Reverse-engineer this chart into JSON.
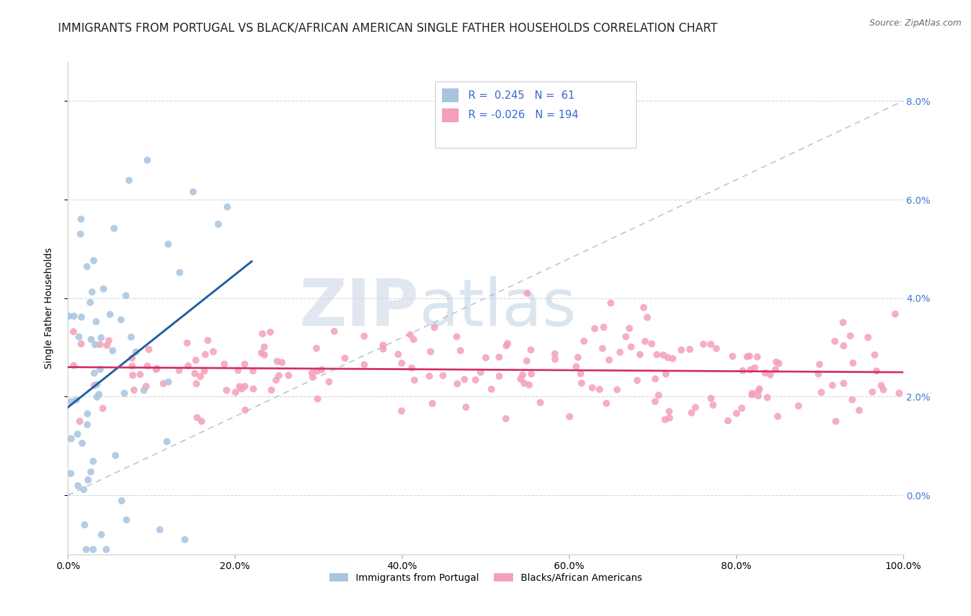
{
  "title": "IMMIGRANTS FROM PORTUGAL VS BLACK/AFRICAN AMERICAN SINGLE FATHER HOUSEHOLDS CORRELATION CHART",
  "source": "Source: ZipAtlas.com",
  "ylabel": "Single Father Households",
  "xlim": [
    0.0,
    100.0
  ],
  "ylim": [
    -1.2,
    8.8
  ],
  "yticks": [
    0.0,
    2.0,
    4.0,
    6.0,
    8.0
  ],
  "xticks": [
    0.0,
    20.0,
    40.0,
    60.0,
    80.0,
    100.0
  ],
  "series1_label": "Immigrants from Portugal",
  "series2_label": "Blacks/African Americans",
  "series1_color": "#a8c4e0",
  "series2_color": "#f4a0b8",
  "series1_R": 0.245,
  "series1_N": 61,
  "series2_R": -0.026,
  "series2_N": 194,
  "trend1_color": "#2060a0",
  "trend2_color": "#d03060",
  "ref_line_color": "#a0b8d0",
  "watermark_zip": "ZIP",
  "watermark_atlas": "atlas",
  "watermark_color_zip": "#c8d8ec",
  "watermark_color_atlas": "#c8d8ec",
  "title_fontsize": 12,
  "axis_fontsize": 10,
  "tick_color": "#4477cc",
  "grid_color": "#cccccc",
  "seed1": 7,
  "seed2": 99,
  "n1": 61,
  "n2": 194
}
